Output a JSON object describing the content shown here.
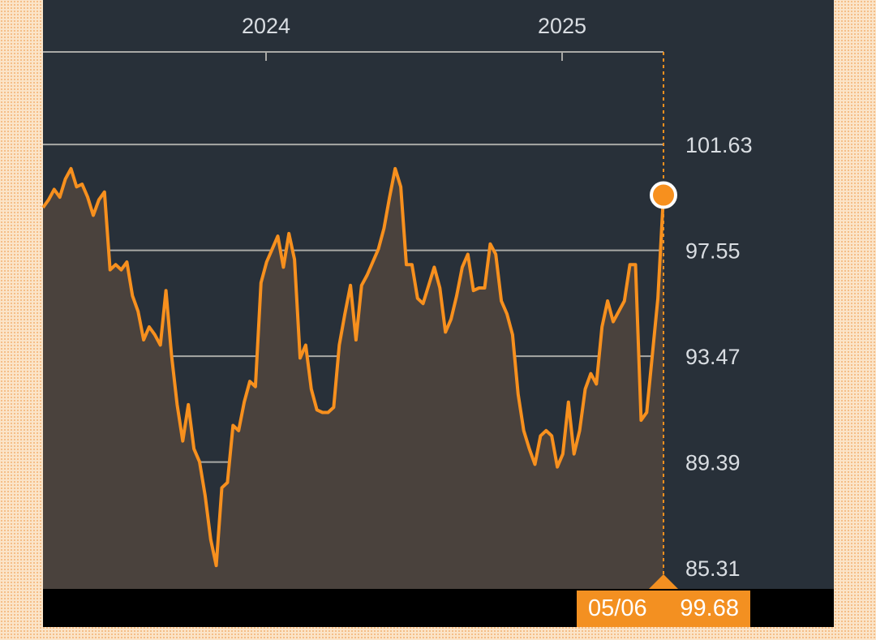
{
  "chart_data": {
    "type": "area",
    "title": "",
    "xlabel": "",
    "ylabel": "",
    "x_ticks": [
      "2024",
      "2025"
    ],
    "y_ticks": [
      "101.63",
      "97.55",
      "93.47",
      "89.39",
      "85.31"
    ],
    "ylim": [
      84.5,
      105.2
    ],
    "grid": true,
    "y_axis_position": "right",
    "series": [
      {
        "values": [
          99.2,
          99.5,
          99.9,
          99.6,
          100.3,
          100.7,
          100.0,
          100.1,
          99.6,
          98.9,
          99.5,
          99.8,
          96.8,
          97.0,
          96.8,
          97.1,
          95.8,
          95.2,
          94.1,
          94.6,
          94.3,
          93.9,
          96.0,
          93.5,
          91.6,
          90.2,
          91.6,
          89.9,
          89.4,
          88.1,
          86.4,
          85.4,
          88.4,
          88.6,
          90.8,
          90.6,
          91.7,
          92.5,
          92.3,
          96.3,
          97.1,
          97.6,
          98.1,
          96.9,
          98.2,
          97.2,
          93.4,
          93.9,
          92.2,
          91.4,
          91.3,
          91.3,
          91.5,
          93.9,
          95.1,
          96.2,
          94.1,
          96.2,
          96.6,
          97.1,
          97.6,
          98.4,
          99.6,
          100.7,
          100.0,
          97.0,
          97.0,
          95.7,
          95.5,
          96.2,
          96.9,
          96.1,
          94.4,
          94.9,
          95.8,
          96.9,
          97.4,
          96.0,
          96.1,
          96.1,
          97.8,
          97.4,
          95.6,
          95.1,
          94.3,
          92.0,
          90.6,
          89.9,
          89.3,
          90.4,
          90.6,
          90.4,
          89.2,
          89.7,
          91.7,
          89.7,
          90.6,
          92.2,
          92.8,
          92.4,
          94.6,
          95.6,
          94.8,
          95.2,
          95.6,
          97.0,
          97.0,
          91.0,
          91.3,
          93.5,
          95.7,
          99.68
        ]
      }
    ],
    "last_point": {
      "date": "05/06",
      "value": "99.68"
    },
    "colors": {
      "line": "#f7901e",
      "area": "#4a423d",
      "background": "#283039",
      "grid": "#a9a9a6",
      "label": "#d9dde2",
      "badge_bg": "#f39021",
      "marker_fill": "#f7901e",
      "marker_ring": "#ffffff"
    }
  }
}
